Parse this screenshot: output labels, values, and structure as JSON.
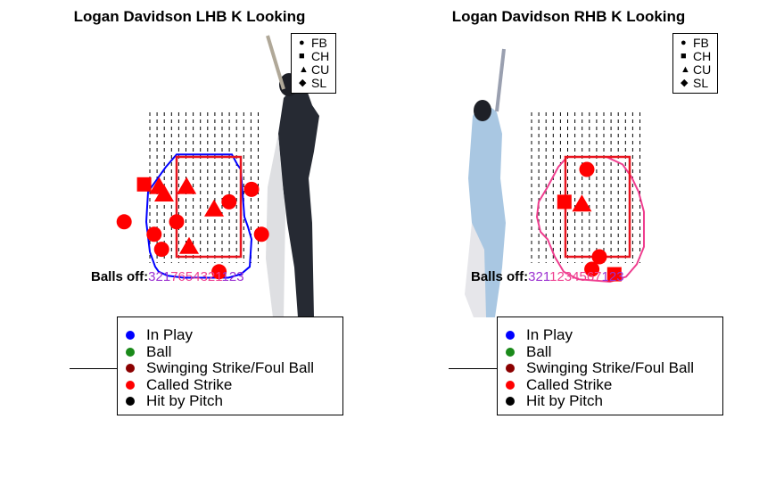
{
  "chart_data": [
    {
      "type": "scatter",
      "title": "Logan Davidson LHB K Looking",
      "batter_side": "LHB",
      "shape_legend": [
        {
          "label": "FB",
          "shape": "circle"
        },
        {
          "label": "CH",
          "shape": "square"
        },
        {
          "label": "CU",
          "shape": "triangle"
        },
        {
          "label": "SL",
          "shape": "diamond"
        }
      ],
      "balls_off_label": "Balls off:",
      "balls_off_digits": [
        {
          "d": "3",
          "c": "#9b30d0"
        },
        {
          "d": "2",
          "c": "#9b30d0"
        },
        {
          "d": "1",
          "c": "#9b30d0"
        },
        {
          "d": "7",
          "c": "#ef3e8f"
        },
        {
          "d": "6",
          "c": "#ef3e8f"
        },
        {
          "d": "5",
          "c": "#ef3e8f"
        },
        {
          "d": "4",
          "c": "#ef3e8f"
        },
        {
          "d": "3",
          "c": "#ef3e8f"
        },
        {
          "d": "2",
          "c": "#ef3e8f"
        },
        {
          "d": "1",
          "c": "#ef3e8f"
        },
        {
          "d": "1",
          "c": "#9b30d0"
        },
        {
          "d": "2",
          "c": "#9b30d0"
        },
        {
          "d": "3",
          "c": "#9b30d0"
        }
      ],
      "zone_outline_color": "#0000ff",
      "strike_zone_color": "#e8141e",
      "pitches": [
        {
          "x": -1.15,
          "y": 2.95,
          "pitch": "CH",
          "result": "Called Strike"
        },
        {
          "x": -0.85,
          "y": 2.9,
          "pitch": "CU",
          "result": "Called Strike"
        },
        {
          "x": -0.75,
          "y": 2.75,
          "pitch": "CU",
          "result": "Called Strike"
        },
        {
          "x": -0.3,
          "y": 2.9,
          "pitch": "CU",
          "result": "Called Strike"
        },
        {
          "x": 0.25,
          "y": 2.45,
          "pitch": "CU",
          "result": "Called Strike"
        },
        {
          "x": 0.55,
          "y": 2.6,
          "pitch": "FB",
          "result": "Called Strike"
        },
        {
          "x": 1.0,
          "y": 2.85,
          "pitch": "FB",
          "result": "Called Strike"
        },
        {
          "x": -1.55,
          "y": 2.2,
          "pitch": "FB",
          "result": "Called Strike"
        },
        {
          "x": -0.5,
          "y": 2.2,
          "pitch": "FB",
          "result": "Called Strike"
        },
        {
          "x": -0.95,
          "y": 1.95,
          "pitch": "FB",
          "result": "Called Strike"
        },
        {
          "x": -0.8,
          "y": 1.65,
          "pitch": "FB",
          "result": "Called Strike"
        },
        {
          "x": -0.25,
          "y": 1.7,
          "pitch": "CU",
          "result": "Called Strike"
        },
        {
          "x": 1.2,
          "y": 1.95,
          "pitch": "FB",
          "result": "Called Strike"
        },
        {
          "x": 0.35,
          "y": 1.2,
          "pitch": "FB",
          "result": "Called Strike"
        }
      ]
    },
    {
      "type": "scatter",
      "title": "Logan Davidson RHB K Looking",
      "batter_side": "RHB",
      "shape_legend": [
        {
          "label": "FB",
          "shape": "circle"
        },
        {
          "label": "CH",
          "shape": "square"
        },
        {
          "label": "CU",
          "shape": "triangle"
        },
        {
          "label": "SL",
          "shape": "diamond"
        }
      ],
      "balls_off_label": "Balls off:",
      "balls_off_digits": [
        {
          "d": "3",
          "c": "#9b30d0"
        },
        {
          "d": "2",
          "c": "#9b30d0"
        },
        {
          "d": "1",
          "c": "#9b30d0"
        },
        {
          "d": "1",
          "c": "#ef3e8f"
        },
        {
          "d": "2",
          "c": "#ef3e8f"
        },
        {
          "d": "3",
          "c": "#ef3e8f"
        },
        {
          "d": "4",
          "c": "#ef3e8f"
        },
        {
          "d": "5",
          "c": "#ef3e8f"
        },
        {
          "d": "6",
          "c": "#ef3e8f"
        },
        {
          "d": "7",
          "c": "#ef3e8f"
        },
        {
          "d": "1",
          "c": "#9b30d0"
        },
        {
          "d": "2",
          "c": "#9b30d0"
        },
        {
          "d": "3",
          "c": "#9b30d0"
        }
      ],
      "zone_outline_color": "#ef3e8f",
      "strike_zone_color": "#e8141e",
      "pitches": [
        {
          "x": 0.0,
          "y": 3.25,
          "pitch": "FB",
          "result": "Called Strike"
        },
        {
          "x": -0.45,
          "y": 2.6,
          "pitch": "CH",
          "result": "Called Strike"
        },
        {
          "x": -0.1,
          "y": 2.55,
          "pitch": "CU",
          "result": "Called Strike"
        },
        {
          "x": 0.25,
          "y": 1.5,
          "pitch": "FB",
          "result": "Called Strike"
        },
        {
          "x": 0.1,
          "y": 1.25,
          "pitch": "FB",
          "result": "Called Strike"
        },
        {
          "x": 0.55,
          "y": 1.15,
          "pitch": "CH",
          "result": "Called Strike"
        }
      ]
    }
  ],
  "color_legend": [
    {
      "label": "In Play",
      "color": "#0000ff"
    },
    {
      "label": "Ball",
      "color": "#1a8a1a"
    },
    {
      "label": "Swinging Strike/Foul Ball",
      "color": "#8b0000"
    },
    {
      "label": "Called Strike",
      "color": "#ff0000"
    },
    {
      "label": "Hit by Pitch",
      "color": "#000000"
    }
  ]
}
